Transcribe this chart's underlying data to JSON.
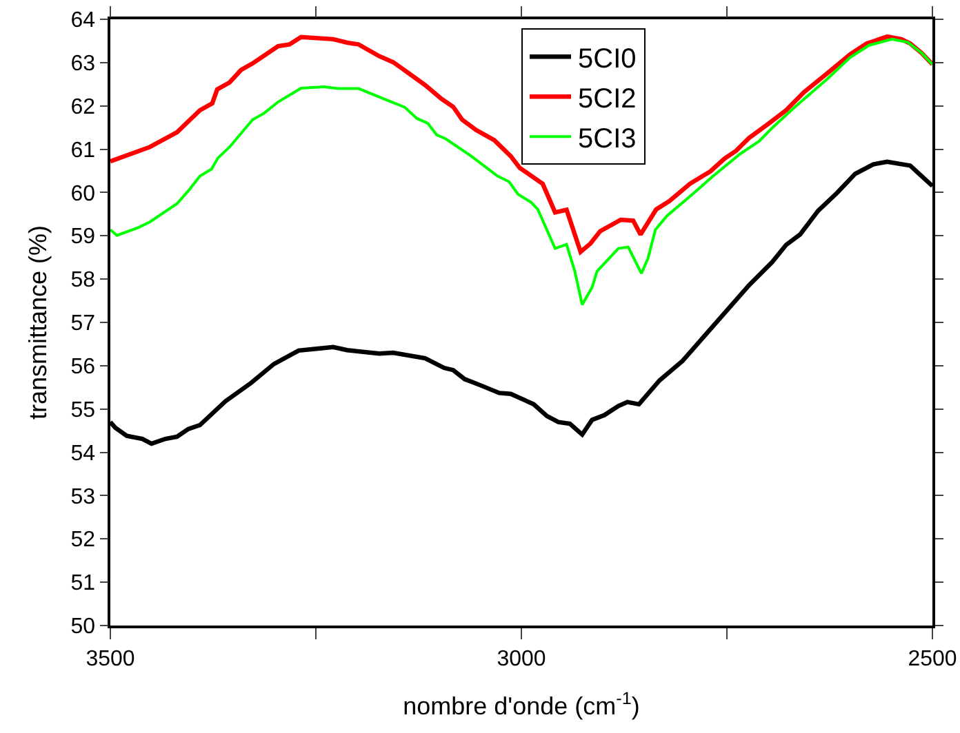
{
  "chart_data": {
    "type": "line",
    "xlabel": "nombre d'onde (cm$^{-1}$)",
    "ylabel": "transmittance (%)",
    "xlim": [
      3500,
      2500
    ],
    "xticks": [
      3500,
      {
        "value": 3250,
        "label": null
      },
      3000,
      {
        "value": 2750,
        "label": null
      },
      2500
    ],
    "ylim": [
      50,
      64
    ],
    "yticks": [
      50,
      51,
      52,
      53,
      54,
      55,
      56,
      57,
      58,
      59,
      60,
      61,
      62,
      63,
      64
    ],
    "grid": false,
    "legend": "top right",
    "marker": "none",
    "line_style": "solid",
    "series": [
      {
        "name": "5CI0",
        "color": "#000000",
        "x": [
          3500,
          3494,
          3480,
          3461,
          3450,
          3433,
          3419,
          3405,
          3391,
          3360,
          3329,
          3301,
          3271,
          3245,
          3229,
          3212,
          3173,
          3156,
          3117,
          3094,
          3083,
          3069,
          3050,
          3027,
          3013,
          2985,
          2969,
          2955,
          2941,
          2926,
          2914,
          2899,
          2882,
          2871,
          2857,
          2832,
          2804,
          2767,
          2723,
          2695,
          2678,
          2661,
          2639,
          2616,
          2594,
          2572,
          2555,
          2527,
          2500
        ],
        "values": [
          54.7,
          54.57,
          54.38,
          54.31,
          54.2,
          54.31,
          54.36,
          54.54,
          54.63,
          55.18,
          55.6,
          56.04,
          56.35,
          56.4,
          56.43,
          56.36,
          56.28,
          56.3,
          56.17,
          55.95,
          55.9,
          55.69,
          55.55,
          55.37,
          55.35,
          55.11,
          54.84,
          54.7,
          54.66,
          54.41,
          54.75,
          54.86,
          55.07,
          55.16,
          55.11,
          55.66,
          56.11,
          56.91,
          57.86,
          58.39,
          58.79,
          59.03,
          59.58,
          59.99,
          60.43,
          60.65,
          60.71,
          60.62,
          60.15
        ]
      },
      {
        "name": "5CI2",
        "color": "#ff0000",
        "x": [
          3500,
          3452,
          3419,
          3391,
          3376,
          3370,
          3355,
          3341,
          3327,
          3296,
          3282,
          3268,
          3229,
          3212,
          3198,
          3173,
          3156,
          3139,
          3117,
          3097,
          3083,
          3072,
          3055,
          3033,
          3013,
          3002,
          2974,
          2959,
          2945,
          2928,
          2916,
          2904,
          2879,
          2864,
          2855,
          2836,
          2820,
          2795,
          2770,
          2753,
          2739,
          2723,
          2700,
          2678,
          2656,
          2628,
          2600,
          2580,
          2555,
          2538,
          2527,
          2513,
          2500
        ],
        "values": [
          60.72,
          61.05,
          61.39,
          61.9,
          62.06,
          62.38,
          62.54,
          62.83,
          62.98,
          63.38,
          63.42,
          63.59,
          63.54,
          63.46,
          63.42,
          63.15,
          63.01,
          62.78,
          62.48,
          62.16,
          61.98,
          61.68,
          61.44,
          61.21,
          60.84,
          60.57,
          60.2,
          59.54,
          59.6,
          58.63,
          58.82,
          59.11,
          59.37,
          59.35,
          59.03,
          59.61,
          59.8,
          60.2,
          60.49,
          60.78,
          60.96,
          61.26,
          61.58,
          61.9,
          62.32,
          62.75,
          63.19,
          63.44,
          63.6,
          63.54,
          63.44,
          63.22,
          62.96
        ]
      },
      {
        "name": "5CI3",
        "color": "#00ff00",
        "x": [
          3500,
          3492,
          3466,
          3452,
          3419,
          3405,
          3391,
          3377,
          3369,
          3355,
          3327,
          3313,
          3296,
          3268,
          3240,
          3223,
          3198,
          3167,
          3142,
          3127,
          3114,
          3103,
          3092,
          3061,
          3029,
          3015,
          3004,
          2988,
          2980,
          2959,
          2945,
          2935,
          2926,
          2914,
          2908,
          2882,
          2870,
          2854,
          2846,
          2837,
          2823,
          2790,
          2768,
          2734,
          2711,
          2695,
          2667,
          2628,
          2600,
          2577,
          2549,
          2530,
          2513,
          2500
        ],
        "values": [
          59.14,
          59.01,
          59.19,
          59.32,
          59.74,
          60.04,
          60.38,
          60.54,
          60.8,
          61.05,
          61.68,
          61.83,
          62.09,
          62.41,
          62.44,
          62.4,
          62.4,
          62.16,
          61.97,
          61.71,
          61.6,
          61.33,
          61.24,
          60.84,
          60.38,
          60.25,
          59.96,
          59.77,
          59.61,
          58.71,
          58.8,
          58.18,
          57.41,
          57.81,
          58.18,
          58.71,
          58.74,
          58.13,
          58.48,
          59.14,
          59.46,
          59.99,
          60.36,
          60.89,
          61.18,
          61.49,
          61.98,
          62.62,
          63.12,
          63.4,
          63.54,
          63.47,
          63.22,
          62.96
        ]
      }
    ]
  }
}
